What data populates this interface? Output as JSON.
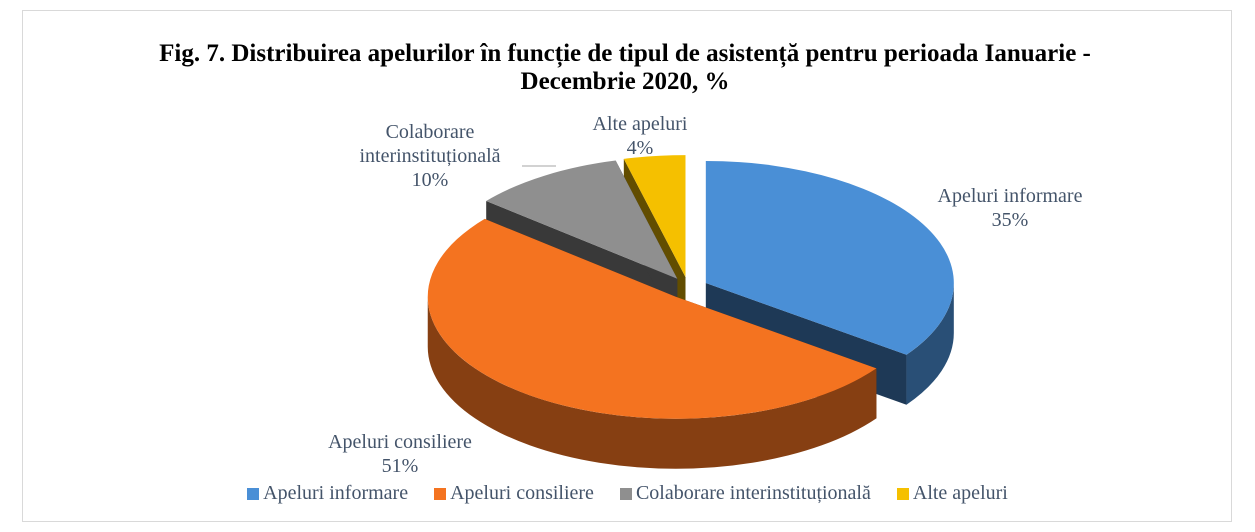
{
  "chart_data": {
    "type": "pie",
    "title": "Fig. 7. Distribuirea apelurilor în funcție de tipul de asistență pentru perioada Ianuarie - Decembrie 2020, %",
    "categories": [
      "Apeluri informare",
      "Apeluri consiliere",
      "Colaborare interinstituțională",
      "Alte apeluri"
    ],
    "values": [
      35,
      51,
      10,
      4
    ],
    "value_labels": [
      "35%",
      "51%",
      "10%",
      "4%"
    ],
    "colors": [
      "#4a8fd6",
      "#f47320",
      "#8f8f8f",
      "#f5c000"
    ],
    "legend": "bottom"
  }
}
